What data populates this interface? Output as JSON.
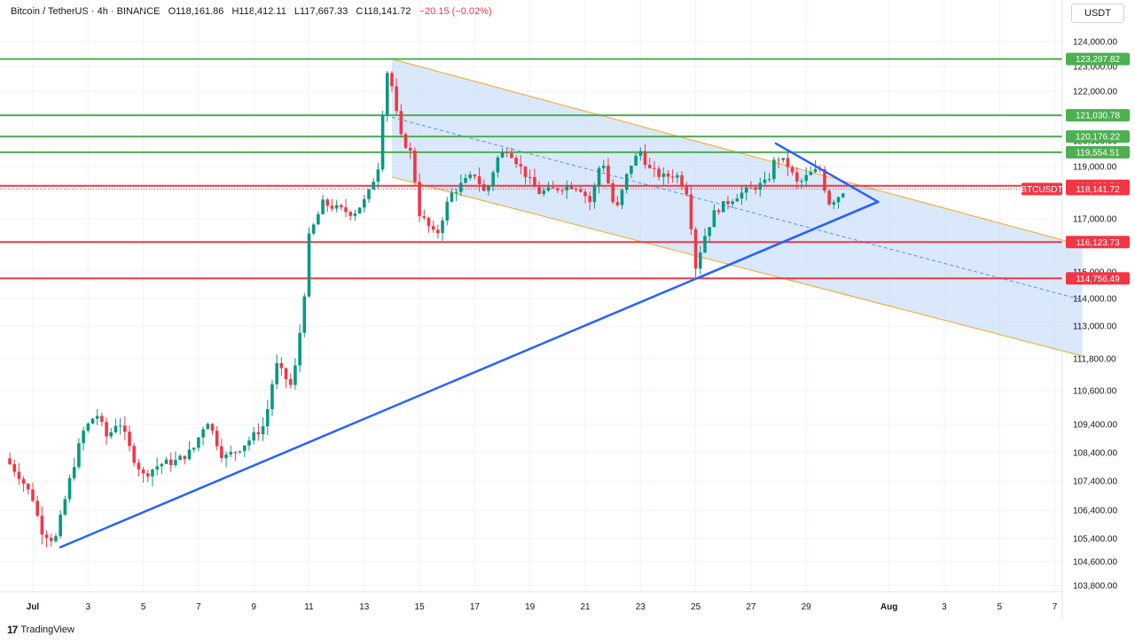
{
  "header": {
    "symbol": "Bitcoin / TetherUS · 4h · BINANCE",
    "open_label": "O",
    "open": "118,161.86",
    "high_label": "H",
    "high": "118,412.11",
    "low_label": "L",
    "low": "117,667.33",
    "close_label": "C",
    "close": "118,141.72",
    "change": "−20.15 (−0.02%)"
  },
  "currency": "USDT",
  "brand": {
    "logo": "17",
    "name": "TradingView"
  },
  "colors": {
    "up": "#089981",
    "down": "#f23645",
    "support": "#f23645",
    "resistance": "#4caf50",
    "trend": "#2962ff",
    "channel_fill": "#bbd6f7",
    "channel_edge": "#f5a623"
  },
  "chart_data": {
    "type": "candlestick",
    "y_ticks": [
      {
        "value": 124000,
        "label": "124,000.00"
      },
      {
        "value": 123000,
        "label": "123,000.00"
      },
      {
        "value": 122000,
        "label": "122,000.00"
      },
      {
        "value": 121000,
        "label": "121,000.00"
      },
      {
        "value": 120000,
        "label": "120,000.00"
      },
      {
        "value": 119000,
        "label": "119,000.00"
      },
      {
        "value": 117000,
        "label": "117,000.00"
      },
      {
        "value": 115000,
        "label": "115,000.00"
      },
      {
        "value": 114000,
        "label": "114,000.00"
      },
      {
        "value": 113000,
        "label": "113,000.00"
      },
      {
        "value": 111800,
        "label": "111,800.00"
      },
      {
        "value": 110600,
        "label": "110,600.00"
      },
      {
        "value": 109400,
        "label": "109,400.00"
      },
      {
        "value": 108400,
        "label": "108,400.00"
      },
      {
        "value": 107400,
        "label": "107,400.00"
      },
      {
        "value": 106400,
        "label": "106,400.00"
      },
      {
        "value": 105400,
        "label": "105,400.00"
      },
      {
        "value": 104600,
        "label": "104,600.00"
      },
      {
        "value": 103800,
        "label": "103,800.00"
      }
    ],
    "x_ticks": [
      {
        "day": 1,
        "label": "Jul",
        "bold": true
      },
      {
        "day": 3,
        "label": "3"
      },
      {
        "day": 5,
        "label": "5"
      },
      {
        "day": 7,
        "label": "7"
      },
      {
        "day": 9,
        "label": "9"
      },
      {
        "day": 11,
        "label": "11"
      },
      {
        "day": 13,
        "label": "13"
      },
      {
        "day": 15,
        "label": "15"
      },
      {
        "day": 17,
        "label": "17"
      },
      {
        "day": 19,
        "label": "19"
      },
      {
        "day": 21,
        "label": "21"
      },
      {
        "day": 23,
        "label": "23"
      },
      {
        "day": 25,
        "label": "25"
      },
      {
        "day": 27,
        "label": "27"
      },
      {
        "day": 29,
        "label": "29"
      },
      {
        "day": 32,
        "label": "Aug",
        "bold": true
      },
      {
        "day": 34,
        "label": "3"
      },
      {
        "day": 36,
        "label": "5"
      },
      {
        "day": 38,
        "label": "7"
      }
    ],
    "levels": [
      {
        "price": 123297.82,
        "label": "123,297.82",
        "kind": "resistance"
      },
      {
        "price": 121030.78,
        "label": "121,030.78",
        "kind": "resistance"
      },
      {
        "price": 120176.22,
        "label": "120,176.22",
        "kind": "resistance"
      },
      {
        "price": 119554.51,
        "label": "119,554.51",
        "kind": "resistance"
      },
      {
        "price": 118263.54,
        "label": "118,263.54",
        "kind": "support"
      },
      {
        "price": 116123.73,
        "label": "116,123.73",
        "kind": "support"
      },
      {
        "price": 114756.49,
        "label": "114,756.49",
        "kind": "support"
      }
    ],
    "last_price": {
      "ticker": "BTCUSDT",
      "price": 118141.72,
      "label": "118,141.72"
    },
    "anchors": [
      {
        "day": 0.0,
        "price": 108200
      },
      {
        "day": 0.5,
        "price": 107600
      },
      {
        "day": 1.0,
        "price": 106800
      },
      {
        "day": 1.3,
        "price": 105700
      },
      {
        "day": 1.8,
        "price": 105300
      },
      {
        "day": 2.3,
        "price": 107300
      },
      {
        "day": 2.8,
        "price": 109100
      },
      {
        "day": 3.3,
        "price": 109800
      },
      {
        "day": 3.7,
        "price": 108900
      },
      {
        "day": 4.1,
        "price": 109600
      },
      {
        "day": 4.6,
        "price": 108300
      },
      {
        "day": 5.0,
        "price": 107600
      },
      {
        "day": 5.6,
        "price": 108000
      },
      {
        "day": 6.2,
        "price": 108100
      },
      {
        "day": 6.8,
        "price": 108500
      },
      {
        "day": 7.3,
        "price": 109600
      },
      {
        "day": 7.9,
        "price": 108200
      },
      {
        "day": 8.4,
        "price": 108500
      },
      {
        "day": 8.9,
        "price": 108900
      },
      {
        "day": 9.4,
        "price": 109400
      },
      {
        "day": 9.8,
        "price": 111600
      },
      {
        "day": 10.4,
        "price": 110700
      },
      {
        "day": 10.8,
        "price": 113800
      },
      {
        "day": 11.0,
        "price": 116300
      },
      {
        "day": 11.5,
        "price": 117600
      },
      {
        "day": 12.0,
        "price": 117400
      },
      {
        "day": 12.6,
        "price": 117200
      },
      {
        "day": 13.1,
        "price": 117800
      },
      {
        "day": 13.5,
        "price": 119000
      },
      {
        "day": 13.8,
        "price": 122900
      },
      {
        "day": 14.0,
        "price": 122200
      },
      {
        "day": 14.3,
        "price": 120200
      },
      {
        "day": 14.7,
        "price": 119500
      },
      {
        "day": 15.0,
        "price": 117200
      },
      {
        "day": 15.6,
        "price": 116300
      },
      {
        "day": 16.1,
        "price": 117900
      },
      {
        "day": 16.6,
        "price": 118400
      },
      {
        "day": 17.0,
        "price": 118700
      },
      {
        "day": 17.4,
        "price": 117900
      },
      {
        "day": 17.8,
        "price": 119300
      },
      {
        "day": 18.2,
        "price": 119700
      },
      {
        "day": 18.7,
        "price": 118900
      },
      {
        "day": 19.3,
        "price": 118000
      },
      {
        "day": 19.8,
        "price": 118100
      },
      {
        "day": 20.4,
        "price": 118300
      },
      {
        "day": 20.8,
        "price": 118200
      },
      {
        "day": 21.2,
        "price": 117600
      },
      {
        "day": 21.6,
        "price": 119400
      },
      {
        "day": 22.1,
        "price": 117200
      },
      {
        "day": 22.6,
        "price": 119000
      },
      {
        "day": 23.0,
        "price": 119600
      },
      {
        "day": 23.3,
        "price": 118900
      },
      {
        "day": 23.8,
        "price": 118600
      },
      {
        "day": 24.3,
        "price": 118700
      },
      {
        "day": 24.7,
        "price": 118000
      },
      {
        "day": 25.0,
        "price": 115200
      },
      {
        "day": 25.3,
        "price": 116300
      },
      {
        "day": 25.7,
        "price": 117300
      },
      {
        "day": 26.1,
        "price": 117600
      },
      {
        "day": 26.5,
        "price": 117900
      },
      {
        "day": 27.1,
        "price": 118200
      },
      {
        "day": 27.6,
        "price": 118400
      },
      {
        "day": 27.9,
        "price": 119400
      },
      {
        "day": 28.3,
        "price": 119100
      },
      {
        "day": 28.7,
        "price": 118300
      },
      {
        "day": 29.1,
        "price": 118700
      },
      {
        "day": 29.5,
        "price": 118900
      },
      {
        "day": 29.8,
        "price": 117600
      },
      {
        "day": 30.1,
        "price": 117800
      },
      {
        "day": 30.4,
        "price": 118141.72
      }
    ],
    "drawings": {
      "channel": {
        "upper": [
          [
            14.0,
            123300
          ],
          [
            39.0,
            116000
          ]
        ],
        "lower": [
          [
            14.0,
            118600
          ],
          [
            39.0,
            111900
          ]
        ],
        "mid": [
          [
            14.0,
            120950
          ],
          [
            39.0,
            113950
          ]
        ]
      },
      "trend_up": [
        [
          2.0,
          105100
        ],
        [
          31.6,
          117650
        ]
      ],
      "triangle_top": [
        [
          27.9,
          119900
        ],
        [
          31.6,
          117650
        ]
      ],
      "upper_line_short": [
        [
          25.1,
          114780
        ],
        [
          31.6,
          117650
        ]
      ]
    }
  }
}
